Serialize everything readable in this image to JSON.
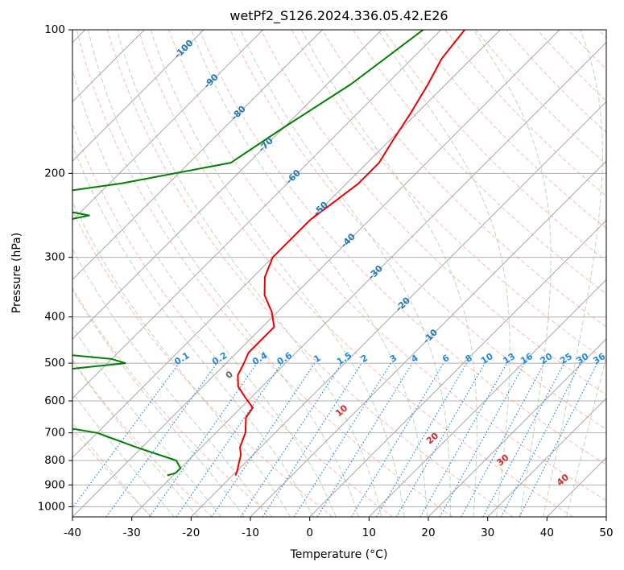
{
  "chart_data": {
    "type": "line",
    "title": "wetPf2_S126.2024.336.05.42.E26",
    "xlabel": "Temperature (°C)",
    "ylabel": "Pressure (hPa)",
    "xlim": [
      -40,
      50
    ],
    "ylim": [
      1050,
      100
    ],
    "y_scale": "log",
    "skew": "skew-T",
    "grid": true,
    "x_ticks": [
      -40,
      -30,
      -20,
      -10,
      0,
      10,
      20,
      30,
      40,
      50
    ],
    "y_ticks": [
      100,
      200,
      300,
      400,
      500,
      600,
      700,
      800,
      900,
      1000
    ],
    "isotherm_labels": [
      "-100",
      "-90",
      "-80",
      "-70",
      "-60",
      "-50",
      "-40",
      "-30",
      "-20",
      "-10"
    ],
    "mixing_ratio_labels": [
      "0.1",
      "0.2",
      "0.4",
      "0.6",
      "1",
      "1.5",
      "2",
      "3",
      "4",
      "6",
      "8",
      "10",
      "13",
      "16",
      "20",
      "25",
      "30",
      "36"
    ],
    "moist_adiabat_labels": [
      "0",
      "10",
      "20",
      "30",
      "40"
    ],
    "colors": {
      "temperature": "#ee0000",
      "dewpoint": "#008000",
      "isotherm_label": "#1f77b4",
      "mixing_ratio": "#1e88e5",
      "moist_adiabat_label": "#d62728",
      "dry_adiabat": "#fa8072",
      "moist_adiabat": "#8fbc8f"
    },
    "series": [
      {
        "pressure": [
          100,
          115,
          130,
          150,
          170,
          190,
          210,
          230,
          250,
          270,
          300,
          330,
          360,
          390,
          420,
          450,
          475,
          500,
          530,
          560,
          590,
          620,
          650,
          700,
          750,
          780,
          810,
          840,
          860
        ],
        "values": [
          -56,
          -55,
          -53,
          -51,
          -49.5,
          -48,
          -48,
          -49,
          -50,
          -50,
          -50,
          -48,
          -45,
          -41,
          -38,
          -38,
          -38,
          -37,
          -36,
          -34,
          -31,
          -28,
          -27.5,
          -25,
          -23.5,
          -22,
          -21,
          -20,
          -19.5
        ]
      },
      {
        "pressure": [
          100,
          130,
          160,
          190,
          210,
          222,
          228,
          235,
          245,
          258,
          270,
          300,
          330,
          360,
          400,
          440,
          470,
          478,
          490,
          500,
          510,
          530,
          550,
          580,
          600,
          620,
          650,
          680,
          700,
          750,
          800,
          830,
          850,
          860
        ],
        "values": [
          -63,
          -66,
          -70,
          -73,
          -88,
          -100,
          -100,
          -97,
          -88,
          -95,
          -95,
          -96,
          -95,
          -97,
          -98,
          -97,
          -86,
          -70,
          -60,
          -57,
          -63,
          -74,
          -76,
          -79,
          -79,
          -77,
          -76,
          -57,
          -50,
          -41,
          -32,
          -30,
          -30,
          -31
        ]
      }
    ]
  }
}
